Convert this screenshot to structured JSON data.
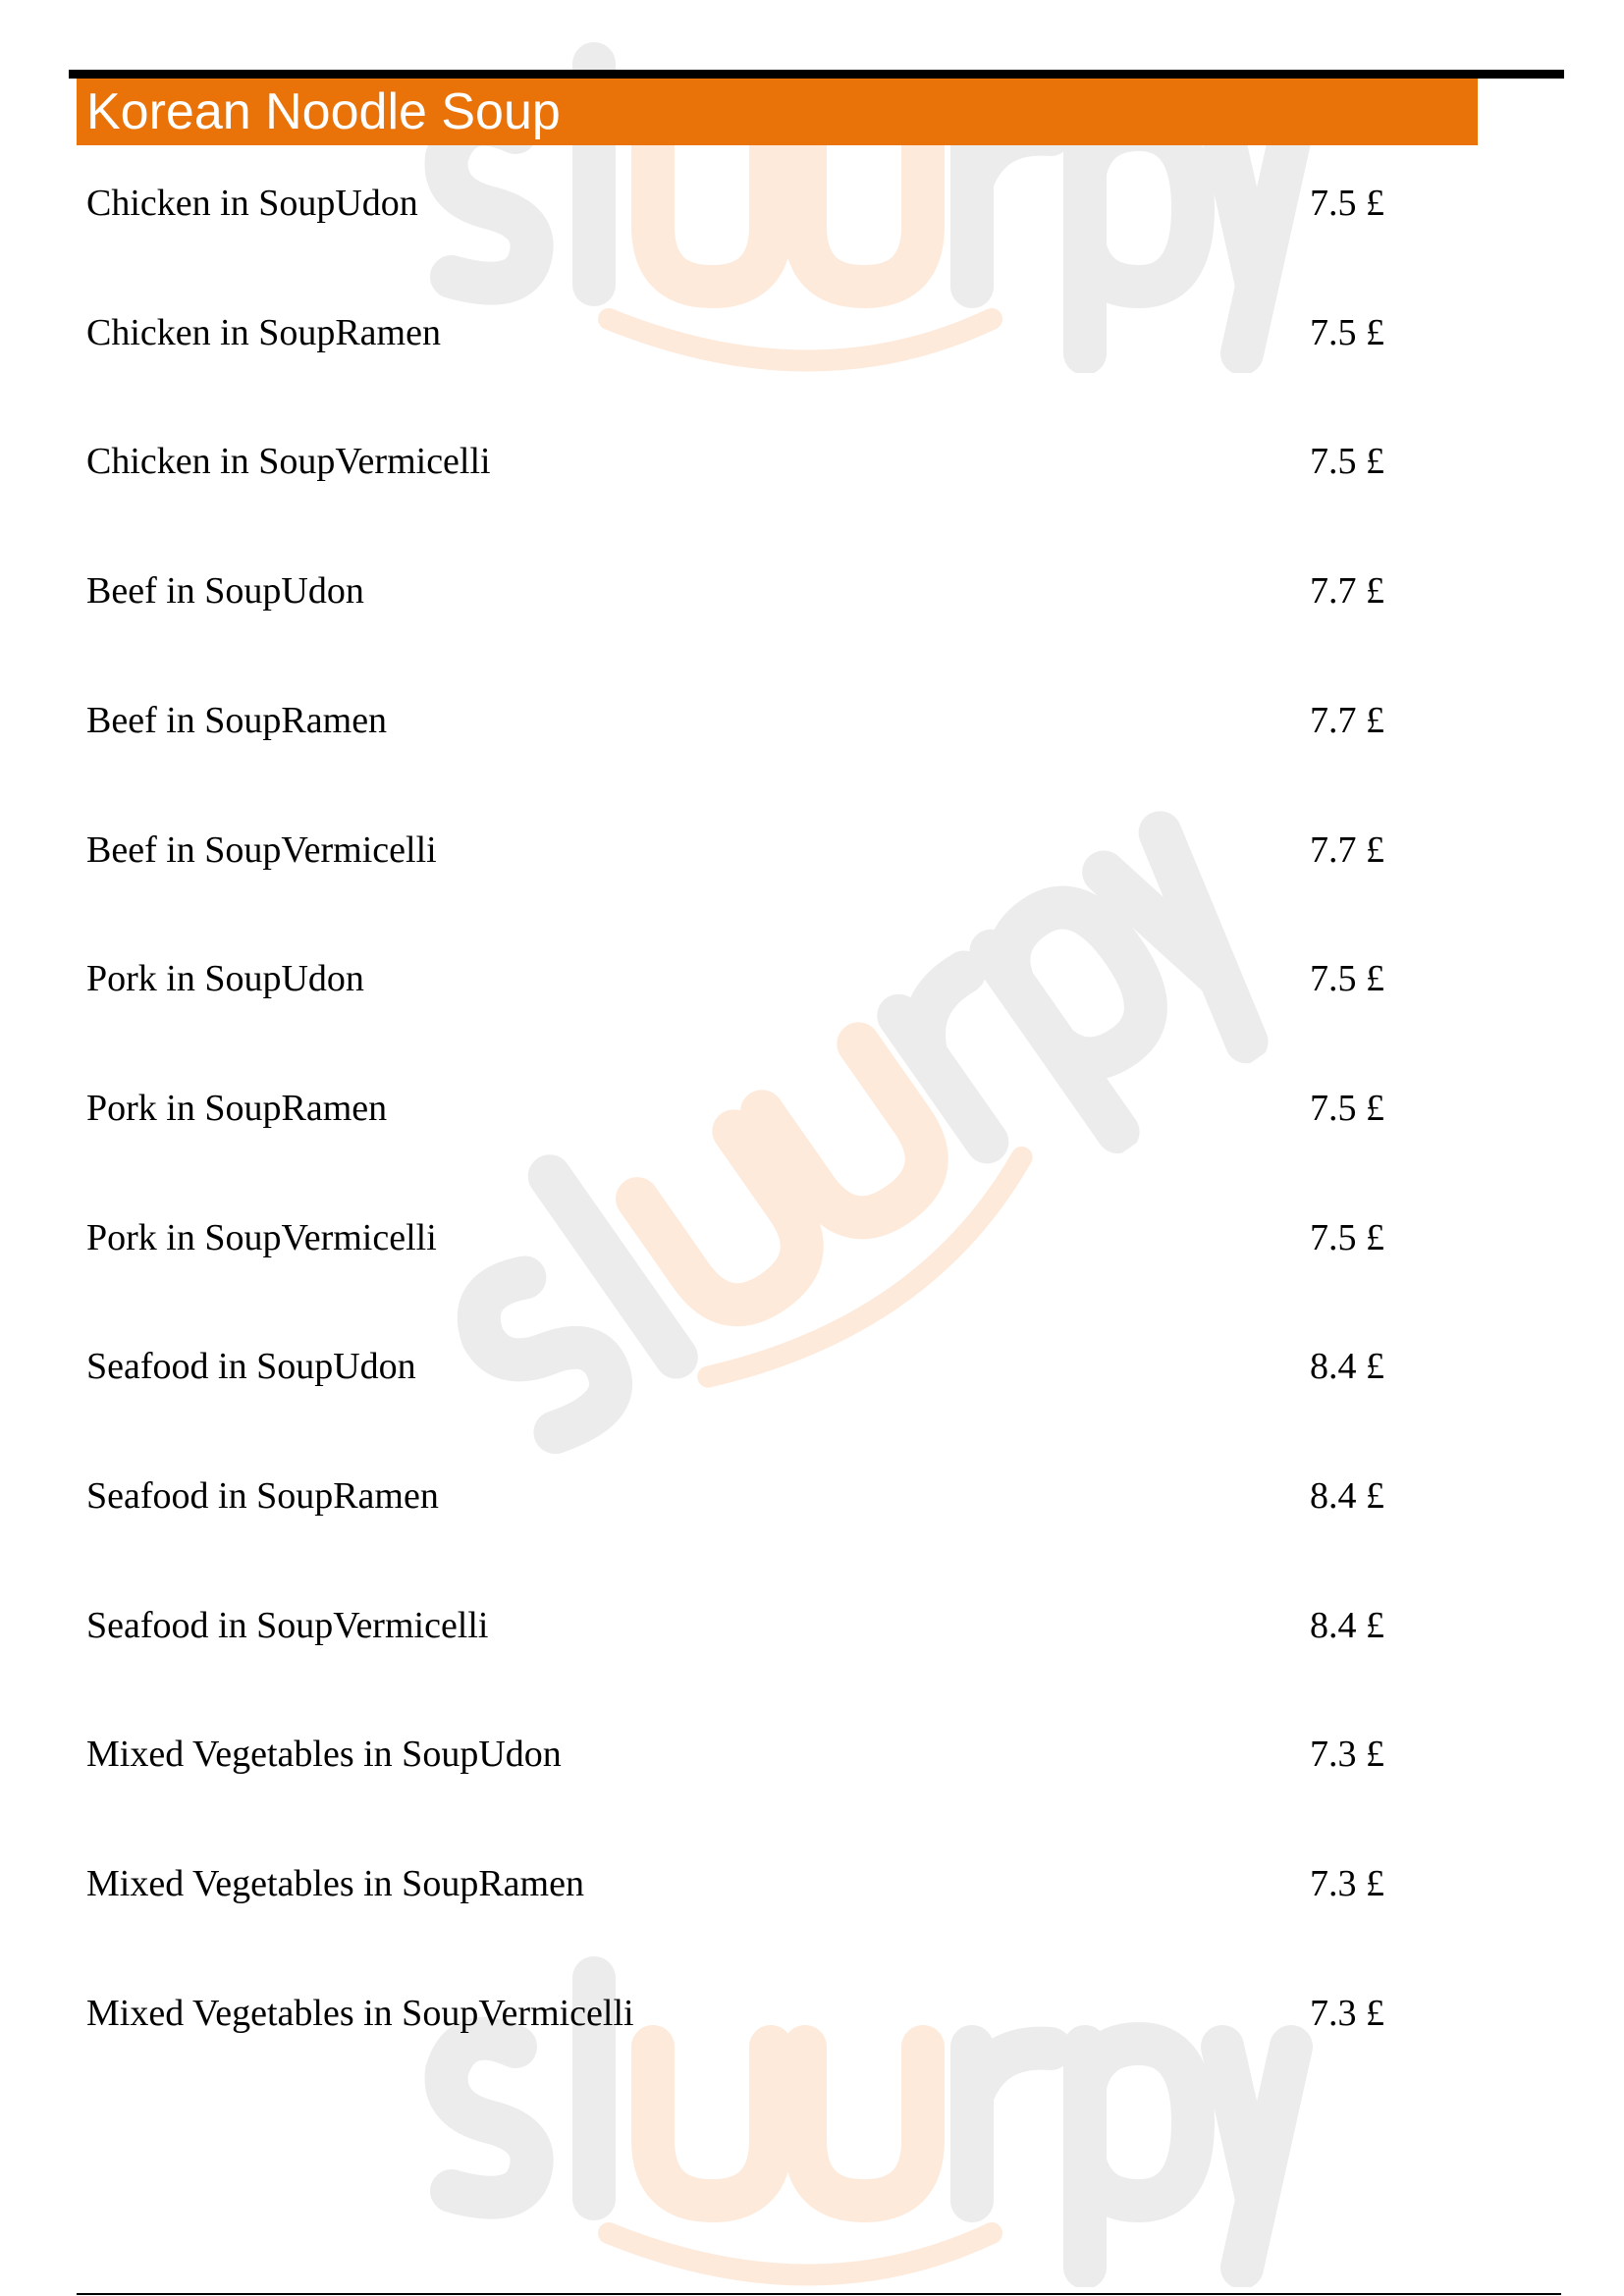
{
  "watermark": {
    "text": "slurpy",
    "colors": {
      "gray": "#ececec",
      "peach": "#fdeadb"
    }
  },
  "section": {
    "title": "Korean Noodle Soup",
    "header_color": "#ea7309",
    "items": [
      {
        "name": "Chicken in SoupUdon",
        "price": "7.5 £"
      },
      {
        "name": "Chicken in SoupRamen",
        "price": "7.5 £"
      },
      {
        "name": "Chicken in SoupVermicelli",
        "price": "7.5 £"
      },
      {
        "name": "Beef in SoupUdon",
        "price": "7.7 £"
      },
      {
        "name": "Beef in SoupRamen",
        "price": "7.7 £"
      },
      {
        "name": "Beef in SoupVermicelli",
        "price": "7.7 £"
      },
      {
        "name": "Pork in SoupUdon",
        "price": "7.5 £"
      },
      {
        "name": "Pork in SoupRamen",
        "price": "7.5 £"
      },
      {
        "name": "Pork in SoupVermicelli",
        "price": "7.5 £"
      },
      {
        "name": "Seafood in SoupUdon",
        "price": "8.4 £"
      },
      {
        "name": "Seafood in SoupRamen",
        "price": "8.4 £"
      },
      {
        "name": "Seafood in SoupVermicelli",
        "price": "8.4 £"
      },
      {
        "name": "Mixed Vegetables in SoupUdon",
        "price": "7.3 £"
      },
      {
        "name": "Mixed Vegetables in SoupRamen",
        "price": "7.3 £"
      },
      {
        "name": "Mixed Vegetables in SoupVermicelli",
        "price": "7.3 £"
      }
    ]
  }
}
